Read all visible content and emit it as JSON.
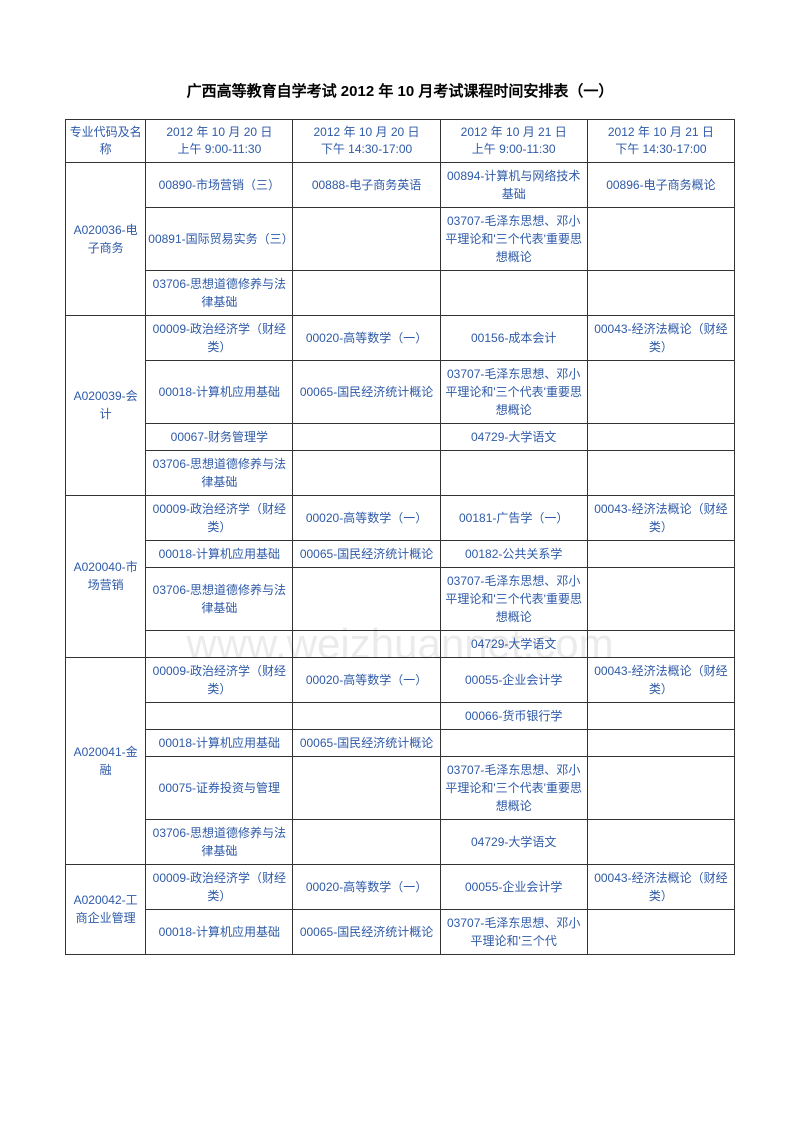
{
  "title": "广西高等教育自学考试 2012 年 10 月考试课程时间安排表（一）",
  "watermark": "www.weizhuannet.com",
  "header": {
    "major": "专业代码及名称",
    "slot1_line1": "2012 年 10 月 20 日",
    "slot1_line2": "上午 9:00-11:30",
    "slot2_line1": "2012 年 10 月 20 日",
    "slot2_line2": "下午 14:30-17:00",
    "slot3_line1": "2012 年 10 月 21 日",
    "slot3_line2": "上午 9:00-11:30",
    "slot4_line1": "2012 年 10 月 21 日",
    "slot4_line2": "下午 14:30-17:00"
  },
  "majors": [
    {
      "code": "A020036-电子商务",
      "rows": [
        {
          "s1": "00890-市场营销（三）",
          "s2": "00888-电子商务英语",
          "s3": "00894-计算机与网络技术基础",
          "s4": "00896-电子商务概论"
        },
        {
          "s1": "00891-国际贸易实务（三）",
          "s2": "",
          "s3": "03707-毛泽东思想、邓小平理论和'三个代表'重要思想概论",
          "s4": ""
        },
        {
          "s1": "03706-思想道德修养与法律基础",
          "s2": "",
          "s3": "",
          "s4": ""
        }
      ]
    },
    {
      "code": "A020039-会计",
      "rows": [
        {
          "s1": "00009-政治经济学（财经类）",
          "s2": "00020-高等数学（一）",
          "s3": "00156-成本会计",
          "s4": "00043-经济法概论（财经类）"
        },
        {
          "s1": "00018-计算机应用基础",
          "s2": "00065-国民经济统计概论",
          "s3": "03707-毛泽东思想、邓小平理论和'三个代表'重要思想概论",
          "s4": ""
        },
        {
          "s1": "00067-财务管理学",
          "s2": "",
          "s3": "04729-大学语文",
          "s4": ""
        },
        {
          "s1": "03706-思想道德修养与法律基础",
          "s2": "",
          "s3": "",
          "s4": ""
        }
      ]
    },
    {
      "code": "A020040-市场营销",
      "rows": [
        {
          "s1": "00009-政治经济学（财经类）",
          "s2": "00020-高等数学（一）",
          "s3": "00181-广告学（一）",
          "s4": "00043-经济法概论（财经类）"
        },
        {
          "s1": "00018-计算机应用基础",
          "s2": "00065-国民经济统计概论",
          "s3": "00182-公共关系学",
          "s4": ""
        },
        {
          "s1": "03706-思想道德修养与法律基础",
          "s2": "",
          "s3": "03707-毛泽东思想、邓小平理论和'三个代表'重要思想概论",
          "s4": ""
        },
        {
          "s1": "",
          "s2": "",
          "s3": "04729-大学语文",
          "s4": ""
        }
      ]
    },
    {
      "code": "A020041-金融",
      "rows": [
        {
          "s1": "00009-政治经济学（财经类）",
          "s2": "00020-高等数学（一）",
          "s3": "00055-企业会计学",
          "s4": "00043-经济法概论（财经类）"
        },
        {
          "s1": "",
          "s2": "",
          "s3": "00066-货币银行学",
          "s4": ""
        },
        {
          "s1": "00018-计算机应用基础",
          "s2": "00065-国民经济统计概论",
          "s3": "",
          "s4": ""
        },
        {
          "s1": "00075-证券投资与管理",
          "s2": "",
          "s3": "03707-毛泽东思想、邓小平理论和'三个代表'重要思想概论",
          "s4": ""
        },
        {
          "s1": "03706-思想道德修养与法律基础",
          "s2": "",
          "s3": "04729-大学语文",
          "s4": ""
        }
      ]
    },
    {
      "code": "A020042-工商企业管理",
      "rows": [
        {
          "s1": "00009-政治经济学（财经类）",
          "s2": "00020-高等数学（一）",
          "s3": "00055-企业会计学",
          "s4": "00043-经济法概论（财经类）"
        },
        {
          "s1": "00018-计算机应用基础",
          "s2": "00065-国民经济统计概论",
          "s3": "03707-毛泽东思想、邓小平理论和'三个代",
          "s4": ""
        }
      ]
    }
  ],
  "colors": {
    "text": "#2e5aa8",
    "border": "#333333",
    "title": "#000000",
    "background": "#ffffff"
  },
  "fonts": {
    "title_size": 15,
    "cell_size": 12
  }
}
